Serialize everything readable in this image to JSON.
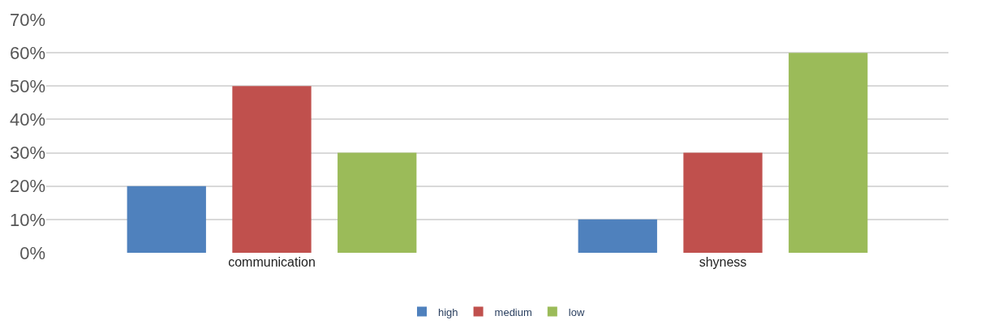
{
  "chart_data": {
    "type": "bar",
    "categories": [
      "communication",
      "shyness"
    ],
    "series": [
      {
        "name": "high",
        "color": "#4f81bd",
        "values": [
          20,
          10
        ]
      },
      {
        "name": "medium",
        "color": "#c0504d",
        "values": [
          50,
          30
        ]
      },
      {
        "name": "low",
        "color": "#9bbb59",
        "values": [
          30,
          60
        ]
      }
    ],
    "ylim": [
      0,
      70
    ],
    "yticks": [
      {
        "value": 0,
        "label": "0%"
      },
      {
        "value": 10,
        "label": "10%"
      },
      {
        "value": 20,
        "label": "20%"
      },
      {
        "value": 30,
        "label": "30%"
      },
      {
        "value": 40,
        "label": "40%"
      },
      {
        "value": 50,
        "label": "50%"
      },
      {
        "value": 60,
        "label": "60%"
      },
      {
        "value": 70,
        "label": "70%"
      }
    ],
    "grid": "y",
    "legend": "bottom"
  }
}
